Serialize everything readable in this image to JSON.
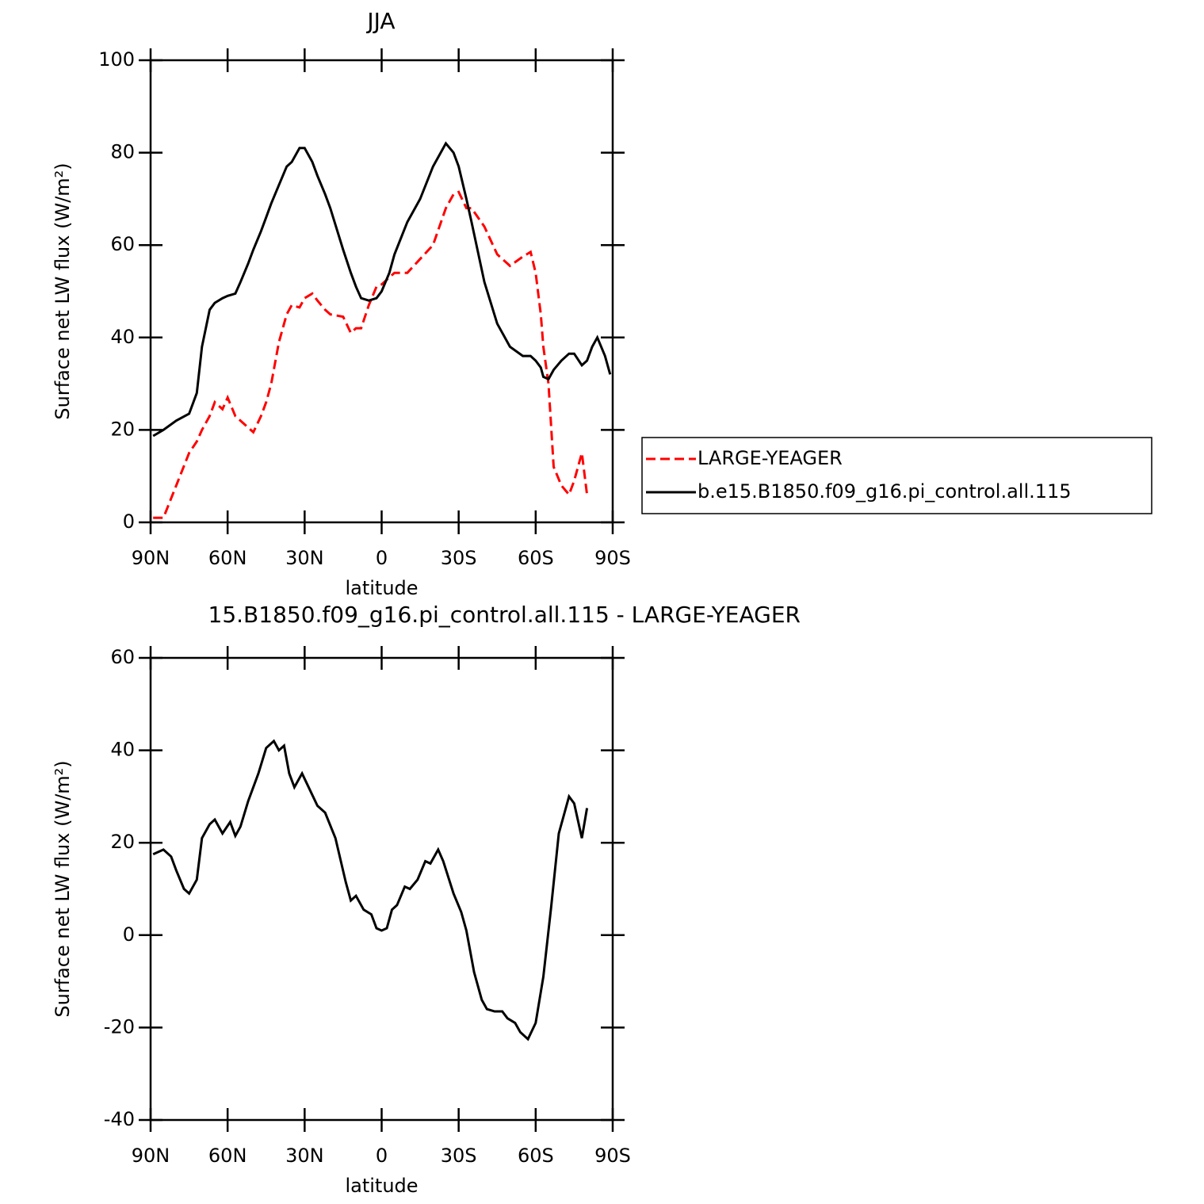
{
  "chart_data": [
    {
      "type": "line",
      "title": "JJA",
      "ylabel": "Surface net LW flux (W/m²)",
      "xlabel": "latitude",
      "x": [
        89,
        85,
        80,
        75,
        72,
        70,
        67,
        65,
        62,
        60,
        57,
        55,
        52,
        50,
        47,
        45,
        43,
        40,
        37,
        35,
        32,
        30,
        27,
        25,
        22,
        20,
        15,
        12,
        10,
        8,
        5,
        2,
        0,
        -3,
        -5,
        -10,
        -15,
        -20,
        -25,
        -28,
        -30,
        -33,
        -35,
        -40,
        -45,
        -50,
        -55,
        -58,
        -60,
        -62,
        -63,
        -65,
        -67,
        -70,
        -73,
        -75,
        -78,
        -80,
        -82,
        -84,
        -87,
        -89
      ],
      "series": [
        {
          "name": "LARGE-YEAGER",
          "color": "#ff0000",
          "style": "dashed",
          "values": [
            1,
            1,
            8,
            15,
            17.5,
            20,
            23,
            26,
            24.5,
            27,
            23,
            22,
            20.5,
            19.5,
            23,
            26,
            30,
            39,
            45,
            47,
            46.5,
            48.5,
            49.5,
            48,
            46,
            45,
            44.5,
            41,
            42,
            42,
            47,
            51,
            51.5,
            53,
            54,
            54,
            57,
            60,
            68,
            71,
            71.5,
            68,
            68,
            64,
            58,
            55.5,
            57.5,
            58.5,
            54,
            45,
            38,
            30,
            12,
            8,
            6,
            9,
            15,
            6,
            null,
            null,
            null,
            null
          ]
        },
        {
          "name": "b.e15.B1850.f09_g16.pi_control.all.115",
          "color": "#000000",
          "style": "solid",
          "values": [
            18.7,
            20,
            22,
            23.5,
            28,
            38,
            46,
            47.5,
            48.5,
            49,
            49.5,
            52,
            56,
            59,
            63,
            66,
            69,
            73,
            77,
            78,
            81,
            81,
            78,
            75,
            71,
            68,
            59,
            54,
            51,
            48.5,
            48,
            48.5,
            50,
            54,
            58,
            65,
            70,
            77,
            82,
            80,
            77,
            70,
            65,
            52,
            43,
            38,
            36,
            36,
            35,
            33.5,
            31.5,
            31,
            33,
            35,
            36.5,
            36.5,
            34,
            35,
            38,
            40,
            36,
            32
          ]
        }
      ],
      "xlim": [
        90,
        -90
      ],
      "xticks": [
        {
          "value": 90,
          "label": "90N"
        },
        {
          "value": 60,
          "label": "60N"
        },
        {
          "value": 30,
          "label": "30N"
        },
        0,
        {
          "value": -30,
          "label": "30S"
        },
        {
          "value": -60,
          "label": "60S"
        },
        {
          "value": -90,
          "label": "90S"
        }
      ],
      "ylim": [
        0,
        100
      ],
      "yticks": [
        0,
        20,
        40,
        60,
        80,
        100
      ],
      "legend": "outside-right"
    },
    {
      "type": "line",
      "title": "15.B1850.f09_g16.pi_control.all.115 - LARGE-YEAGER",
      "ylabel": "Surface net LW flux (W/m²)",
      "xlabel": "latitude",
      "x": [
        89,
        85,
        82,
        80,
        77,
        75,
        72,
        70,
        67,
        65,
        62,
        59,
        57,
        55,
        52,
        48,
        45,
        42,
        40,
        38,
        36,
        34,
        31,
        28,
        25,
        22,
        18,
        14,
        12,
        10,
        7,
        4,
        2,
        0,
        -2,
        -4,
        -6,
        -9,
        -11,
        -14,
        -17,
        -19,
        -22,
        -24,
        -28,
        -31,
        -33,
        -36,
        -39,
        -41,
        -44,
        -47,
        -49,
        -52,
        -54,
        -57,
        -60,
        -63,
        -66,
        -69,
        -73,
        -75,
        -78,
        -80
      ],
      "series": [
        {
          "color": "#000000",
          "style": "solid",
          "values": [
            17.5,
            18.5,
            17,
            14,
            10,
            9,
            12,
            21,
            24,
            25,
            22,
            24.5,
            21.5,
            23.5,
            29,
            35,
            40.5,
            42,
            40,
            41,
            35,
            32,
            35,
            31.5,
            28,
            26.5,
            21,
            11.5,
            7.5,
            8.5,
            5.5,
            4.5,
            1.5,
            1,
            1.5,
            5.5,
            6.5,
            10.5,
            10,
            12,
            16,
            15.5,
            18.5,
            16,
            9,
            5,
            1,
            -8,
            -14,
            -16,
            -16.5,
            -16.5,
            -18,
            -19,
            -21,
            -22.5,
            -19,
            -9,
            6,
            22,
            30,
            28.5,
            21,
            27.5
          ]
        }
      ],
      "xlim": [
        90,
        -90
      ],
      "xticks": [
        {
          "value": 90,
          "label": "90N"
        },
        {
          "value": 60,
          "label": "60N"
        },
        {
          "value": 30,
          "label": "30N"
        },
        0,
        {
          "value": -30,
          "label": "30S"
        },
        {
          "value": -60,
          "label": "60S"
        },
        {
          "value": -90,
          "label": "90S"
        }
      ],
      "ylim": [
        -40,
        60
      ],
      "yticks": [
        -40,
        -20,
        0,
        20,
        40,
        60
      ]
    }
  ]
}
